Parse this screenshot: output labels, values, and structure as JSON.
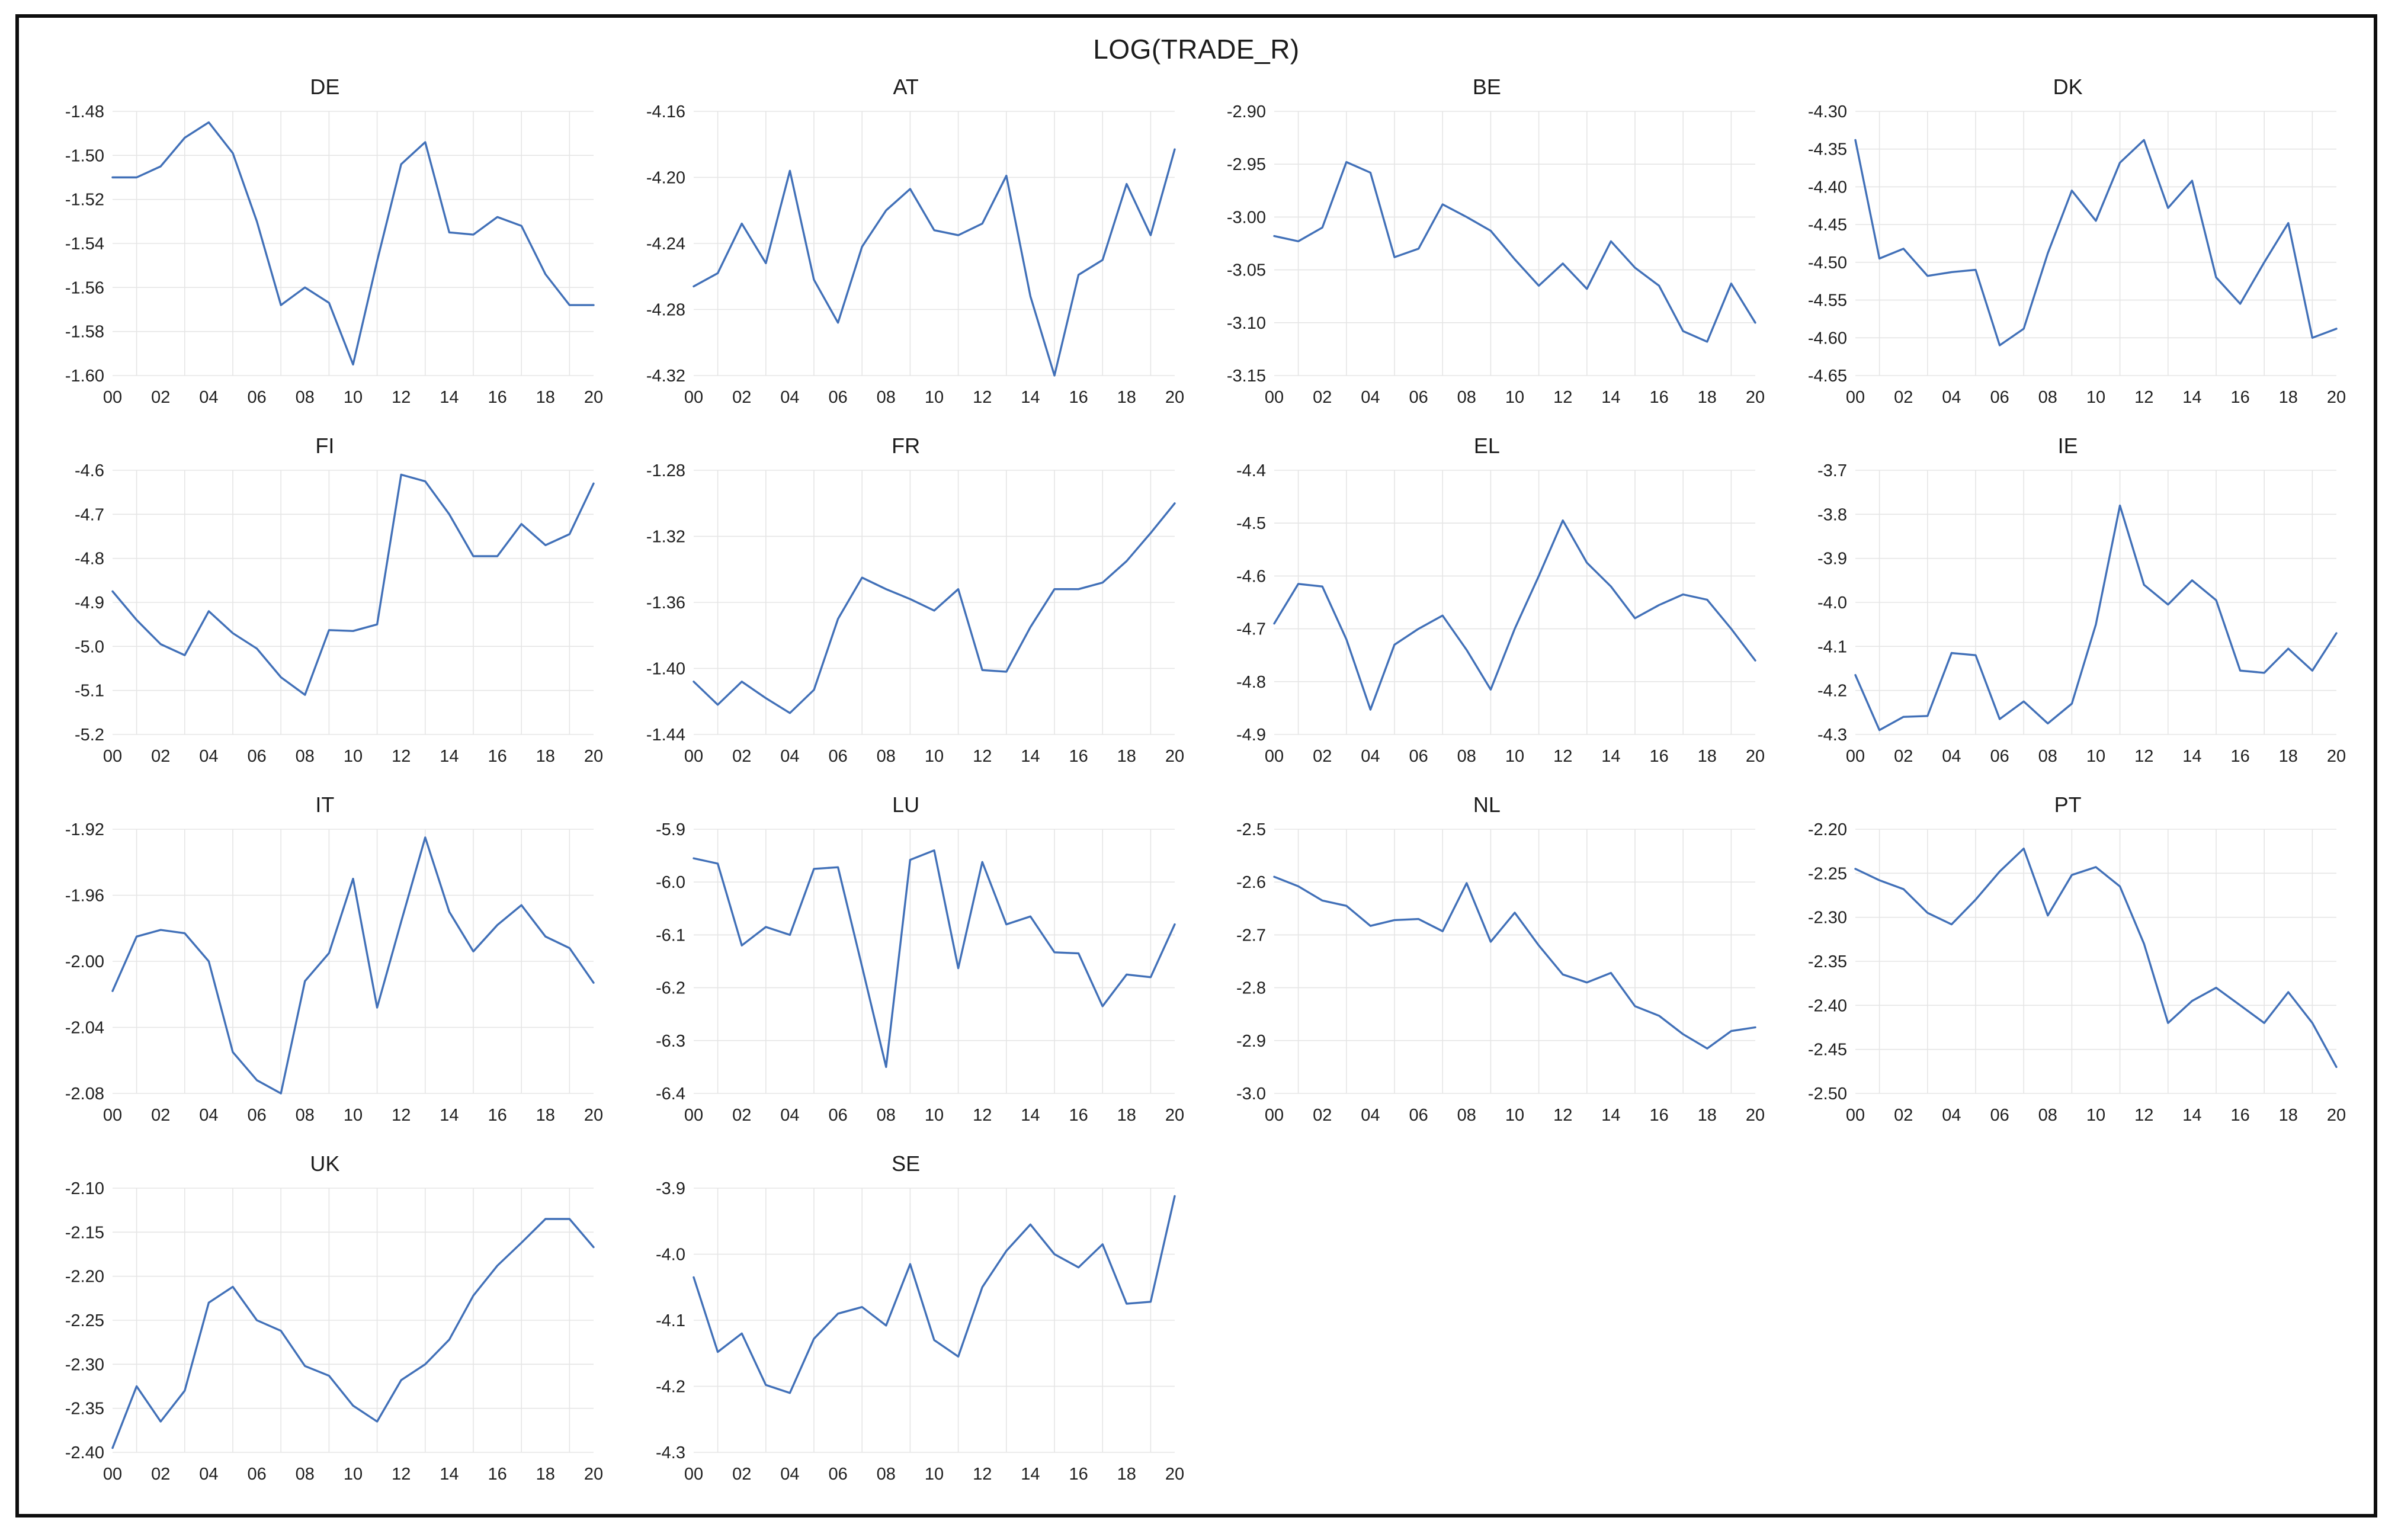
{
  "figure": {
    "title": "LOG(TRADE_R)"
  },
  "style": {
    "line_color": "#4170b8",
    "grid_color": "#e5e5e5",
    "text_color": "#202020",
    "border_color": "#0e0e0e",
    "background": "#ffffff"
  },
  "x_labels": [
    "00",
    "02",
    "04",
    "06",
    "08",
    "10",
    "12",
    "14",
    "16",
    "18",
    "20"
  ],
  "chart_data": [
    {
      "type": "line",
      "name": "DE",
      "title": "DE",
      "x": [
        2000,
        2001,
        2002,
        2003,
        2004,
        2005,
        2006,
        2007,
        2008,
        2009,
        2010,
        2011,
        2012,
        2013,
        2014,
        2015,
        2016,
        2017,
        2018,
        2019,
        2020
      ],
      "values": [
        -1.51,
        -1.51,
        -1.505,
        -1.492,
        -1.485,
        -1.499,
        -1.53,
        -1.568,
        -1.56,
        -1.567,
        -1.595,
        -1.548,
        -1.504,
        -1.494,
        -1.535,
        -1.536,
        -1.528,
        -1.532,
        -1.554,
        -1.568,
        -1.568
      ],
      "ylim": [
        -1.6,
        -1.48
      ],
      "ystep": 0.02,
      "ydecimals": 2,
      "grid": true,
      "legend": "none"
    },
    {
      "type": "line",
      "name": "AT",
      "title": "AT",
      "x": [
        2000,
        2001,
        2002,
        2003,
        2004,
        2005,
        2006,
        2007,
        2008,
        2009,
        2010,
        2011,
        2012,
        2013,
        2014,
        2015,
        2016,
        2017,
        2018,
        2019,
        2020
      ],
      "values": [
        -4.266,
        -4.258,
        -4.228,
        -4.252,
        -4.196,
        -4.262,
        -4.288,
        -4.242,
        -4.22,
        -4.207,
        -4.232,
        -4.235,
        -4.228,
        -4.199,
        -4.272,
        -4.32,
        -4.259,
        -4.25,
        -4.204,
        -4.235,
        -4.183
      ],
      "ylim": [
        -4.32,
        -4.16
      ],
      "ystep": 0.04,
      "ydecimals": 2,
      "grid": true,
      "legend": "none"
    },
    {
      "type": "line",
      "name": "BE",
      "title": "BE",
      "x": [
        2000,
        2001,
        2002,
        2003,
        2004,
        2005,
        2006,
        2007,
        2008,
        2009,
        2010,
        2011,
        2012,
        2013,
        2014,
        2015,
        2016,
        2017,
        2018,
        2019,
        2020
      ],
      "values": [
        -3.018,
        -3.023,
        -3.01,
        -2.948,
        -2.958,
        -3.038,
        -3.03,
        -2.988,
        -3.0,
        -3.013,
        -3.04,
        -3.065,
        -3.044,
        -3.068,
        -3.023,
        -3.048,
        -3.065,
        -3.108,
        -3.118,
        -3.063,
        -3.1
      ],
      "ylim": [
        -3.15,
        -2.9
      ],
      "ystep": 0.05,
      "ydecimals": 2,
      "grid": true,
      "legend": "none"
    },
    {
      "type": "line",
      "name": "DK",
      "title": "DK",
      "x": [
        2000,
        2001,
        2002,
        2003,
        2004,
        2005,
        2006,
        2007,
        2008,
        2009,
        2010,
        2011,
        2012,
        2013,
        2014,
        2015,
        2016,
        2017,
        2018,
        2019,
        2020
      ],
      "values": [
        -4.338,
        -4.495,
        -4.482,
        -4.518,
        -4.513,
        -4.51,
        -4.61,
        -4.588,
        -4.488,
        -4.405,
        -4.445,
        -4.368,
        -4.338,
        -4.428,
        -4.392,
        -4.52,
        -4.555,
        -4.5,
        -4.448,
        -4.6,
        -4.588
      ],
      "ylim": [
        -4.65,
        -4.3
      ],
      "ystep": 0.05,
      "ydecimals": 2,
      "grid": true,
      "legend": "none"
    },
    {
      "type": "line",
      "name": "FI",
      "title": "FI",
      "x": [
        2000,
        2001,
        2002,
        2003,
        2004,
        2005,
        2006,
        2007,
        2008,
        2009,
        2010,
        2011,
        2012,
        2013,
        2014,
        2015,
        2016,
        2017,
        2018,
        2019,
        2020
      ],
      "values": [
        -4.875,
        -4.94,
        -4.995,
        -5.02,
        -4.92,
        -4.97,
        -5.005,
        -5.07,
        -5.11,
        -4.963,
        -4.965,
        -4.95,
        -4.61,
        -4.625,
        -4.7,
        -4.795,
        -4.795,
        -4.722,
        -4.77,
        -4.745,
        -4.63
      ],
      "ylim": [
        -5.2,
        -4.6
      ],
      "ystep": 0.1,
      "ydecimals": 1,
      "grid": true,
      "legend": "none"
    },
    {
      "type": "line",
      "name": "FR",
      "title": "FR",
      "x": [
        2000,
        2001,
        2002,
        2003,
        2004,
        2005,
        2006,
        2007,
        2008,
        2009,
        2010,
        2011,
        2012,
        2013,
        2014,
        2015,
        2016,
        2017,
        2018,
        2019,
        2020
      ],
      "values": [
        -1.408,
        -1.422,
        -1.408,
        -1.418,
        -1.427,
        -1.413,
        -1.37,
        -1.345,
        -1.352,
        -1.358,
        -1.365,
        -1.352,
        -1.401,
        -1.402,
        -1.375,
        -1.352,
        -1.352,
        -1.348,
        -1.335,
        -1.318,
        -1.3
      ],
      "ylim": [
        -1.44,
        -1.28
      ],
      "ystep": 0.04,
      "ydecimals": 2,
      "grid": true,
      "legend": "none"
    },
    {
      "type": "line",
      "name": "EL",
      "title": "EL",
      "x": [
        2000,
        2001,
        2002,
        2003,
        2004,
        2005,
        2006,
        2007,
        2008,
        2009,
        2010,
        2011,
        2012,
        2013,
        2014,
        2015,
        2016,
        2017,
        2018,
        2019,
        2020
      ],
      "values": [
        -4.69,
        -4.615,
        -4.62,
        -4.72,
        -4.853,
        -4.73,
        -4.7,
        -4.675,
        -4.74,
        -4.815,
        -4.7,
        -4.6,
        -4.495,
        -4.575,
        -4.62,
        -4.68,
        -4.655,
        -4.635,
        -4.645,
        -4.7,
        -4.76
      ],
      "ylim": [
        -4.9,
        -4.4
      ],
      "ystep": 0.1,
      "ydecimals": 1,
      "grid": true,
      "legend": "none"
    },
    {
      "type": "line",
      "name": "IE",
      "title": "IE",
      "x": [
        2000,
        2001,
        2002,
        2003,
        2004,
        2005,
        2006,
        2007,
        2008,
        2009,
        2010,
        2011,
        2012,
        2013,
        2014,
        2015,
        2016,
        2017,
        2018,
        2019,
        2020
      ],
      "values": [
        -4.165,
        -4.29,
        -4.26,
        -4.258,
        -4.115,
        -4.12,
        -4.265,
        -4.225,
        -4.275,
        -4.23,
        -4.05,
        -3.78,
        -3.96,
        -4.005,
        -3.95,
        -3.995,
        -4.155,
        -4.16,
        -4.105,
        -4.155,
        -4.07
      ],
      "ylim": [
        -4.3,
        -3.7
      ],
      "ystep": 0.1,
      "ydecimals": 1,
      "grid": true,
      "legend": "none"
    },
    {
      "type": "line",
      "name": "IT",
      "title": "IT",
      "x": [
        2000,
        2001,
        2002,
        2003,
        2004,
        2005,
        2006,
        2007,
        2008,
        2009,
        2010,
        2011,
        2012,
        2013,
        2014,
        2015,
        2016,
        2017,
        2018,
        2019,
        2020
      ],
      "values": [
        -2.018,
        -1.985,
        -1.981,
        -1.983,
        -2.0,
        -2.055,
        -2.072,
        -2.08,
        -2.012,
        -1.995,
        -1.95,
        -2.028,
        -1.976,
        -1.925,
        -1.97,
        -1.994,
        -1.978,
        -1.966,
        -1.985,
        -1.992,
        -2.013
      ],
      "ylim": [
        -2.08,
        -1.92
      ],
      "ystep": 0.04,
      "ydecimals": 2,
      "grid": true,
      "legend": "none"
    },
    {
      "type": "line",
      "name": "LU",
      "title": "LU",
      "x": [
        2000,
        2001,
        2002,
        2003,
        2004,
        2005,
        2006,
        2007,
        2008,
        2009,
        2010,
        2011,
        2012,
        2013,
        2014,
        2015,
        2016,
        2017,
        2018,
        2019,
        2020
      ],
      "values": [
        -5.955,
        -5.965,
        -6.12,
        -6.085,
        -6.1,
        -5.975,
        -5.972,
        -6.16,
        -6.35,
        -5.958,
        -5.94,
        -6.163,
        -5.962,
        -6.08,
        -6.065,
        -6.133,
        -6.135,
        -6.235,
        -6.175,
        -6.18,
        -6.08
      ],
      "ylim": [
        -6.4,
        -5.9
      ],
      "ystep": 0.1,
      "ydecimals": 1,
      "grid": true,
      "legend": "none"
    },
    {
      "type": "line",
      "name": "NL",
      "title": "NL",
      "x": [
        2000,
        2001,
        2002,
        2003,
        2004,
        2005,
        2006,
        2007,
        2008,
        2009,
        2010,
        2011,
        2012,
        2013,
        2014,
        2015,
        2016,
        2017,
        2018,
        2019,
        2020
      ],
      "values": [
        -2.59,
        -2.608,
        -2.635,
        -2.645,
        -2.683,
        -2.672,
        -2.67,
        -2.693,
        -2.602,
        -2.713,
        -2.658,
        -2.72,
        -2.775,
        -2.79,
        -2.772,
        -2.835,
        -2.853,
        -2.888,
        -2.915,
        -2.882,
        -2.875
      ],
      "ylim": [
        -3.0,
        -2.5
      ],
      "ystep": 0.1,
      "ydecimals": 1,
      "grid": true,
      "legend": "none"
    },
    {
      "type": "line",
      "name": "PT",
      "title": "PT",
      "x": [
        2000,
        2001,
        2002,
        2003,
        2004,
        2005,
        2006,
        2007,
        2008,
        2009,
        2010,
        2011,
        2012,
        2013,
        2014,
        2015,
        2016,
        2017,
        2018,
        2019,
        2020
      ],
      "values": [
        -2.245,
        -2.258,
        -2.268,
        -2.295,
        -2.308,
        -2.28,
        -2.248,
        -2.222,
        -2.298,
        -2.252,
        -2.243,
        -2.265,
        -2.33,
        -2.42,
        -2.395,
        -2.38,
        -2.4,
        -2.42,
        -2.385,
        -2.42,
        -2.47
      ],
      "ylim": [
        -2.5,
        -2.2
      ],
      "ystep": 0.05,
      "ydecimals": 2,
      "grid": true,
      "legend": "none"
    },
    {
      "type": "line",
      "name": "UK",
      "title": "UK",
      "x": [
        2000,
        2001,
        2002,
        2003,
        2004,
        2005,
        2006,
        2007,
        2008,
        2009,
        2010,
        2011,
        2012,
        2013,
        2014,
        2015,
        2016,
        2017,
        2018,
        2019,
        2020
      ],
      "values": [
        -2.395,
        -2.325,
        -2.365,
        -2.33,
        -2.23,
        -2.212,
        -2.25,
        -2.262,
        -2.302,
        -2.313,
        -2.347,
        -2.365,
        -2.318,
        -2.3,
        -2.272,
        -2.222,
        -2.188,
        -2.162,
        -2.135,
        -2.135,
        -2.167
      ],
      "ylim": [
        -2.4,
        -2.1
      ],
      "ystep": 0.05,
      "ydecimals": 2,
      "grid": true,
      "legend": "none"
    },
    {
      "type": "line",
      "name": "SE",
      "title": "SE",
      "x": [
        2000,
        2001,
        2002,
        2003,
        2004,
        2005,
        2006,
        2007,
        2008,
        2009,
        2010,
        2011,
        2012,
        2013,
        2014,
        2015,
        2016,
        2017,
        2018,
        2019,
        2020
      ],
      "values": [
        -4.035,
        -4.148,
        -4.12,
        -4.198,
        -4.21,
        -4.128,
        -4.09,
        -4.08,
        -4.108,
        -4.015,
        -4.13,
        -4.155,
        -4.05,
        -3.995,
        -3.955,
        -4.0,
        -4.02,
        -3.985,
        -4.075,
        -4.072,
        -3.912
      ],
      "ylim": [
        -4.3,
        -3.9
      ],
      "ystep": 0.1,
      "ydecimals": 1,
      "grid": true,
      "legend": "none"
    }
  ]
}
